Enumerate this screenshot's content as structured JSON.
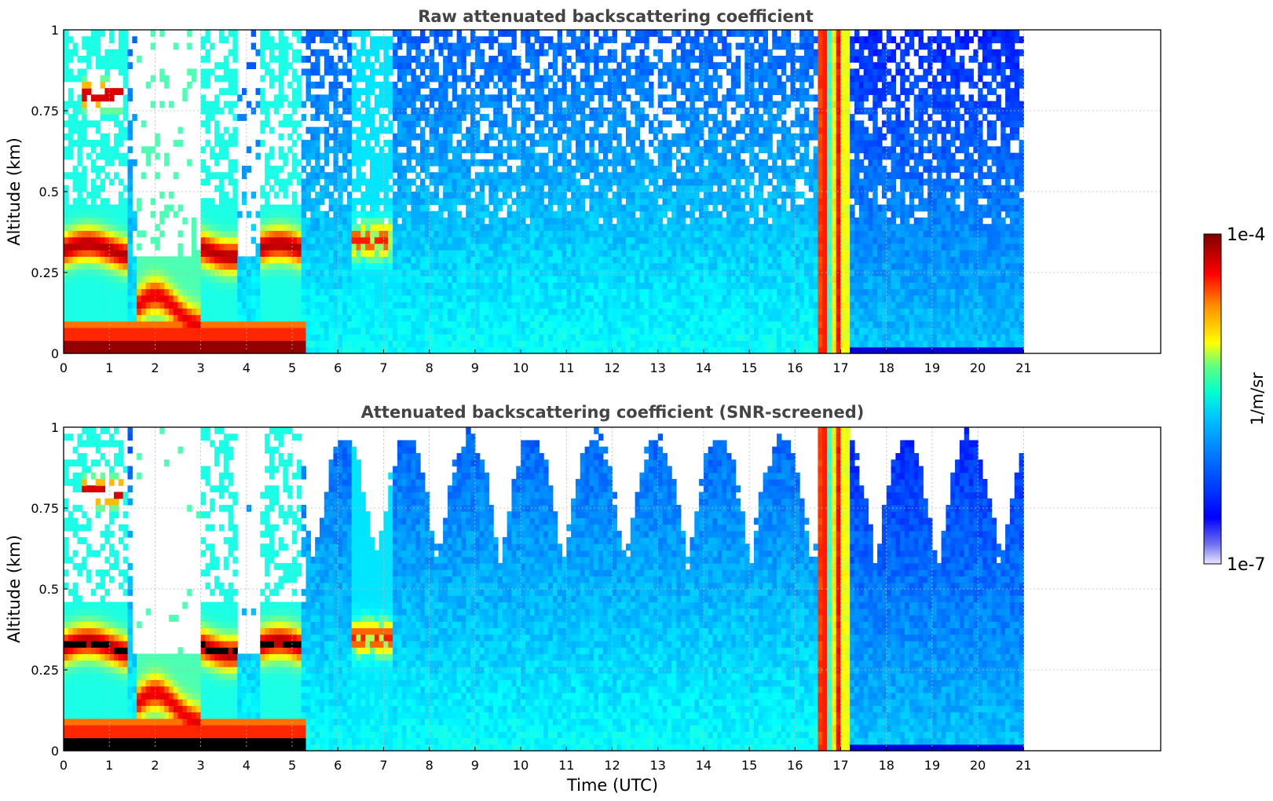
{
  "chart_data": [
    {
      "type": "heatmap",
      "title": "Raw attenuated backscattering coefficient",
      "xlabel": "",
      "ylabel": "Altitude (km)",
      "xlim": [
        0,
        24
      ],
      "ylim": [
        0,
        1
      ],
      "xticks": [
        "0",
        "1",
        "2",
        "3",
        "4",
        "5",
        "6",
        "7",
        "8",
        "9",
        "10",
        "11",
        "12",
        "13",
        "14",
        "15",
        "16",
        "17",
        "18",
        "19",
        "20",
        "21"
      ],
      "yticks": [
        "0",
        "0.25",
        "0.5",
        "0.75",
        "1"
      ],
      "data_extent_hours": [
        0,
        21
      ],
      "grid": true,
      "screened": false,
      "features": [
        {
          "label": "surface layer",
          "x": [
            0,
            5.3
          ],
          "y": [
            0,
            0.05
          ],
          "level": "1e-4"
        },
        {
          "label": "residual layer",
          "x": [
            0,
            5.2
          ],
          "y": [
            0.28,
            0.38
          ],
          "level": "1e-4"
        },
        {
          "label": "elevated layer",
          "x": [
            0.4,
            1.3
          ],
          "y": [
            0.77,
            0.85
          ],
          "level": "1e-4"
        },
        {
          "label": "precipitation",
          "x": [
            16.5,
            17.2
          ],
          "y": [
            0,
            1
          ],
          "level": "1e-5"
        }
      ]
    },
    {
      "type": "heatmap",
      "title": "Attenuated backscattering coefficient (SNR-screened)",
      "xlabel": "Time (UTC)",
      "ylabel": "Altitude (km)",
      "xlim": [
        0,
        24
      ],
      "ylim": [
        0,
        1
      ],
      "xticks": [
        "0",
        "1",
        "2",
        "3",
        "4",
        "5",
        "6",
        "7",
        "8",
        "9",
        "10",
        "11",
        "12",
        "13",
        "14",
        "15",
        "16",
        "17",
        "18",
        "19",
        "20",
        "21"
      ],
      "yticks": [
        "0",
        "0.25",
        "0.5",
        "0.75",
        "1"
      ],
      "data_extent_hours": [
        0,
        21
      ],
      "grid": true,
      "screened": true
    }
  ],
  "colorbar": {
    "label": "1/m/sr",
    "max_label": "1e-4",
    "min_label": "1e-7",
    "scale": "log",
    "colormap": "jet"
  }
}
